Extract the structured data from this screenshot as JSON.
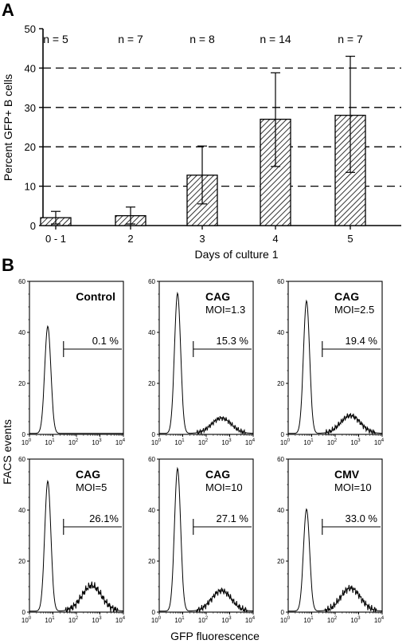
{
  "panel_a_label": "A",
  "panel_b_label": "B",
  "chart_data": [
    {
      "type": "bar",
      "xlabel": "Days of culture 1",
      "ylabel": "Percent GFP+ B cells",
      "ylim": [
        0,
        50
      ],
      "yticks": [
        "0",
        "10",
        "20",
        "30",
        "40",
        "50"
      ],
      "categories": [
        "0 - 1",
        "2",
        "3",
        "4",
        "5"
      ],
      "values": [
        2,
        2.5,
        12.8,
        27,
        28
      ],
      "error_low": [
        0.4,
        0.4,
        5.5,
        15,
        13.5
      ],
      "error_high": [
        3.6,
        4.7,
        20.2,
        38.8,
        43
      ],
      "annotations": [
        "n = 5",
        "n = 7",
        "n = 8",
        "n = 14",
        "n = 7"
      ],
      "grid": "dashed horizontal at 10, 20, 30, 40",
      "bar_fill": "diagonal hatch"
    },
    {
      "type": "histogram",
      "shared_ylabel": "FACS events",
      "shared_xlabel": "GFP fluorescence",
      "x_scale": "log",
      "xlim": [
        1,
        10000
      ],
      "ylim": [
        0,
        60
      ],
      "yticks": [
        "0",
        "20",
        "40",
        "60"
      ],
      "xtick_base": "10",
      "xtick_exponents": [
        "0",
        "1",
        "2",
        "3",
        "4"
      ],
      "panels": [
        {
          "vector": "Control",
          "moi": "",
          "gate_percent": "0.1 %",
          "peak": 42,
          "tail_height": 0
        },
        {
          "vector": "CAG",
          "moi": "MOI=1.3",
          "gate_percent": "15.3 %",
          "peak": 55,
          "tail_height": 6
        },
        {
          "vector": "CAG",
          "moi": "MOI=2.5",
          "gate_percent": "19.4 %",
          "peak": 52,
          "tail_height": 7
        },
        {
          "vector": "CAG",
          "moi": "MOI=5",
          "gate_percent": "26.1%",
          "peak": 51,
          "tail_height": 10
        },
        {
          "vector": "CAG",
          "moi": "MOI=10",
          "gate_percent": "27.1 %",
          "peak": 56,
          "tail_height": 8
        },
        {
          "vector": "CMV",
          "moi": "MOI=10",
          "gate_percent": "33.0 %",
          "peak": 40,
          "tail_height": 9
        }
      ]
    }
  ]
}
